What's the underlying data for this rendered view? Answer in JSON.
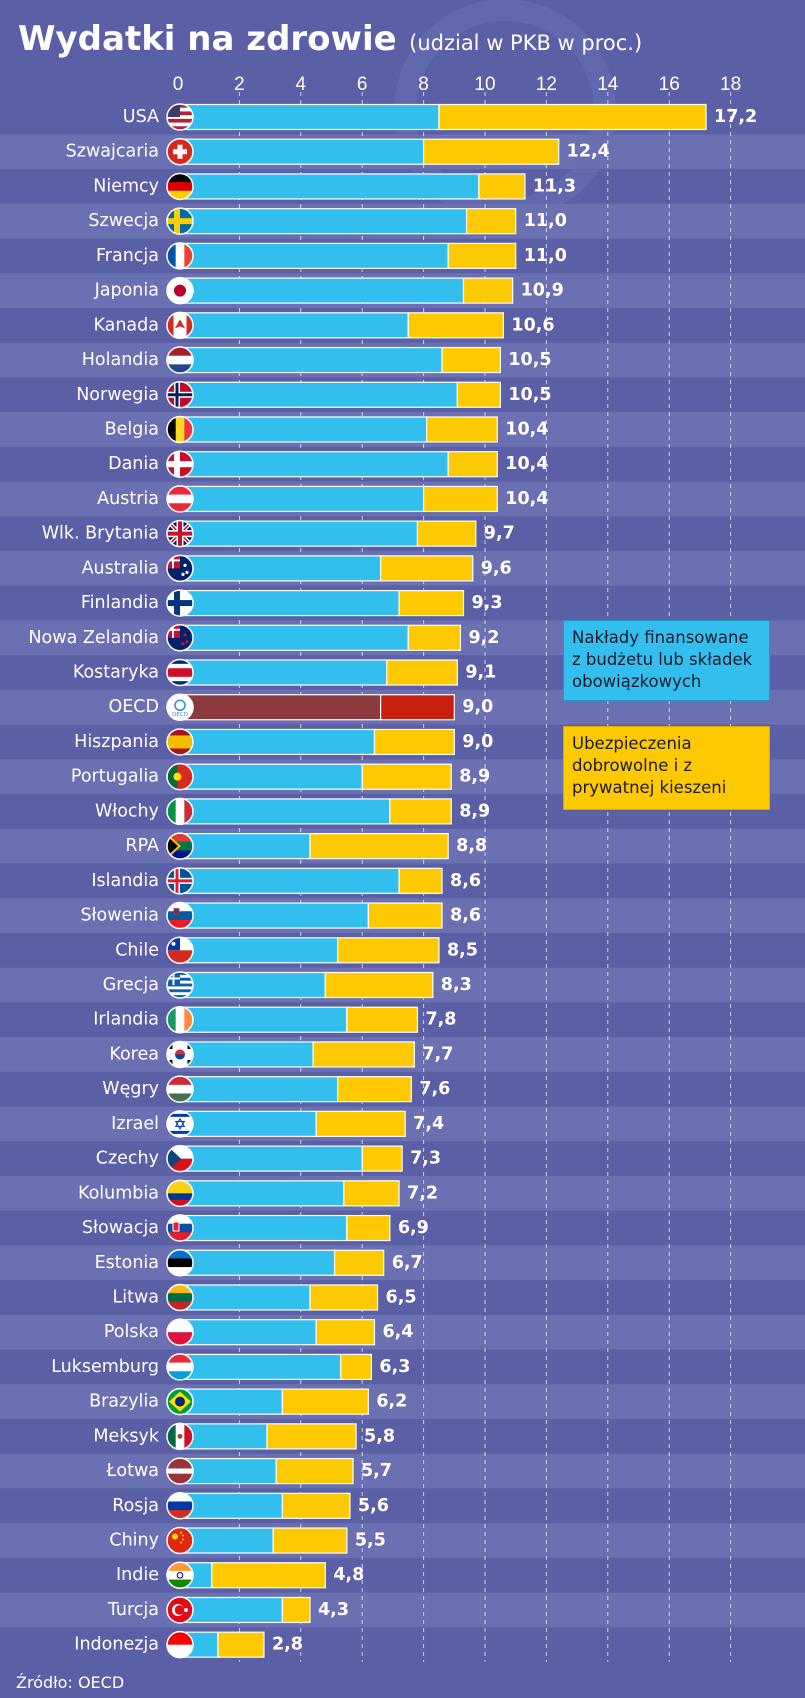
{
  "chart_data": {
    "type": "bar",
    "orientation": "horizontal",
    "stacked": true,
    "title": "Wydatki na zdrowie",
    "subtitle": "(udzial w PKB w proc.)",
    "source": "Źródło: OECD",
    "xlim": [
      0,
      18
    ],
    "ticks": [
      "0",
      "2",
      "4",
      "6",
      "8",
      "10",
      "12",
      "14",
      "16",
      "18"
    ],
    "grid": true,
    "categories": [
      "USA",
      "Szwajcaria",
      "Niemcy",
      "Szwecja",
      "Francja",
      "Japonia",
      "Kanada",
      "Holandia",
      "Norwegia",
      "Belgia",
      "Dania",
      "Austria",
      "Wlk. Brytania",
      "Australia",
      "Finlandia",
      "Nowa Zelandia",
      "Kostaryka",
      "OECD",
      "Hiszpania",
      "Portugalia",
      "Włochy",
      "RPA",
      "Islandia",
      "Słowenia",
      "Chile",
      "Grecja",
      "Irlandia",
      "Korea",
      "Węgry",
      "Izrael",
      "Czechy",
      "Kolumbia",
      "Słowacja",
      "Estonia",
      "Litwa",
      "Polska",
      "Luksemburg",
      "Brazylia",
      "Meksyk",
      "Łotwa",
      "Rosja",
      "Chiny",
      "Indie",
      "Turcja",
      "Indonezja"
    ],
    "series": [
      {
        "name": "Nakłady finansowane z budżetu lub składek obowiązkowych",
        "color": "#33bfee",
        "values": [
          8.5,
          8.0,
          9.8,
          9.4,
          8.8,
          9.3,
          7.5,
          8.6,
          9.1,
          8.1,
          8.8,
          8.0,
          7.8,
          6.6,
          7.2,
          7.5,
          6.8,
          6.6,
          6.4,
          6.0,
          6.9,
          4.3,
          7.2,
          6.2,
          5.2,
          4.8,
          5.5,
          4.4,
          5.2,
          4.5,
          6.0,
          5.4,
          5.5,
          5.1,
          4.3,
          4.5,
          5.3,
          3.4,
          2.9,
          3.2,
          3.4,
          3.1,
          1.1,
          3.4,
          1.3
        ]
      },
      {
        "name": "Ubezpieczenia dobrowolne i z prywatnej kieszeni",
        "color": "#ffc900",
        "values": [
          8.7,
          4.4,
          1.5,
          1.6,
          2.2,
          1.6,
          3.1,
          1.9,
          1.4,
          2.3,
          1.6,
          2.4,
          1.9,
          3.0,
          2.1,
          1.7,
          2.3,
          2.4,
          2.6,
          2.9,
          2.0,
          4.5,
          1.4,
          2.4,
          3.3,
          3.5,
          2.3,
          3.3,
          2.4,
          2.9,
          1.3,
          1.8,
          1.4,
          1.6,
          2.2,
          1.9,
          1.0,
          2.8,
          2.9,
          2.5,
          2.2,
          2.4,
          3.7,
          0.9,
          1.5
        ]
      }
    ],
    "totals": [
      "17,2",
      "12,4",
      "11,3",
      "11,0",
      "11,0",
      "10,9",
      "10,6",
      "10,5",
      "10,5",
      "10,4",
      "10,4",
      "10,4",
      "9,7",
      "9,6",
      "9,3",
      "9,2",
      "9,1",
      "9,0",
      "9,0",
      "8,9",
      "8,9",
      "8,8",
      "8,6",
      "8,6",
      "8,5",
      "8,3",
      "7,8",
      "7,7",
      "7,6",
      "7,4",
      "7,3",
      "7,2",
      "6,9",
      "6,7",
      "6,5",
      "6,4",
      "6,3",
      "6,2",
      "5,8",
      "5,7",
      "5,6",
      "5,5",
      "4,8",
      "4,3",
      "2,8"
    ],
    "highlight": {
      "category": "OECD",
      "colors": [
        "#8b3a3e",
        "#c8200f"
      ]
    },
    "flag_icons": [
      "usa-flag-icon",
      "switzerland-flag-icon",
      "germany-flag-icon",
      "sweden-flag-icon",
      "france-flag-icon",
      "japan-flag-icon",
      "canada-flag-icon",
      "netherlands-flag-icon",
      "norway-flag-icon",
      "belgium-flag-icon",
      "denmark-flag-icon",
      "austria-flag-icon",
      "uk-flag-icon",
      "australia-flag-icon",
      "finland-flag-icon",
      "new-zealand-flag-icon",
      "costa-rica-flag-icon",
      "oecd-logo-icon",
      "spain-flag-icon",
      "portugal-flag-icon",
      "italy-flag-icon",
      "south-africa-flag-icon",
      "iceland-flag-icon",
      "slovenia-flag-icon",
      "chile-flag-icon",
      "greece-flag-icon",
      "ireland-flag-icon",
      "korea-flag-icon",
      "hungary-flag-icon",
      "israel-flag-icon",
      "czechia-flag-icon",
      "colombia-flag-icon",
      "slovakia-flag-icon",
      "estonia-flag-icon",
      "lithuania-flag-icon",
      "poland-flag-icon",
      "luxembourg-flag-icon",
      "brazil-flag-icon",
      "mexico-flag-icon",
      "latvia-flag-icon",
      "russia-flag-icon",
      "china-flag-icon",
      "india-flag-icon",
      "turkey-flag-icon",
      "indonesia-flag-icon"
    ],
    "oecd_logo_text": "OECD",
    "colors": {
      "background": "#5a5fa6",
      "stripe": "#6b70b2",
      "public": "#33bfee",
      "private": "#ffc900"
    }
  }
}
